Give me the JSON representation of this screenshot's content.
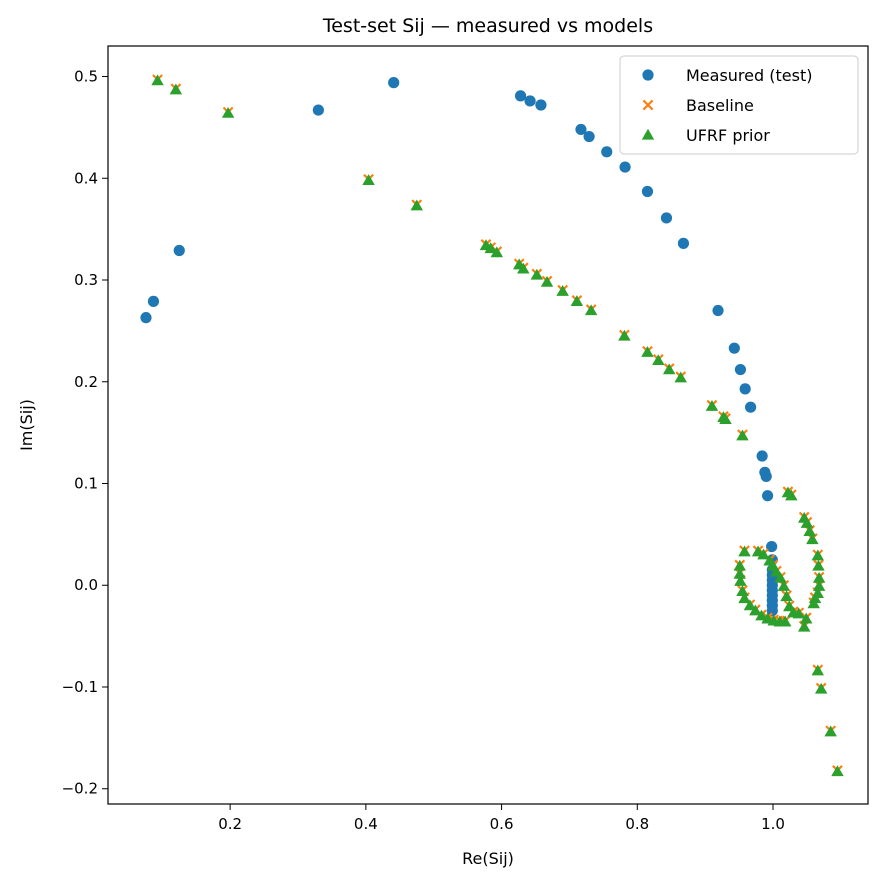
{
  "chart_data": {
    "type": "scatter",
    "title": "Test-set Sij — measured vs models",
    "xlabel": "Re(Sij)",
    "ylabel": "Im(Sij)",
    "xlim": [
      0.02,
      1.14
    ],
    "ylim": [
      -0.215,
      0.53
    ],
    "xticks": [
      0.2,
      0.4,
      0.6,
      0.8,
      1.0
    ],
    "xtick_labels": [
      "0.2",
      "0.4",
      "0.6",
      "0.8",
      "1.0"
    ],
    "yticks": [
      -0.2,
      -0.1,
      0.0,
      0.1,
      0.2,
      0.3,
      0.4,
      0.5
    ],
    "ytick_labels": [
      "−0.2",
      "−0.1",
      "0.0",
      "0.1",
      "0.2",
      "0.3",
      "0.4",
      "0.5"
    ],
    "grid": false,
    "legend_position": "top-right",
    "series": [
      {
        "name": "Measured (test)",
        "marker": "circle",
        "color": "#1f77b4",
        "points": [
          [
            0.076,
            0.263
          ],
          [
            0.087,
            0.279
          ],
          [
            0.125,
            0.329
          ],
          [
            0.33,
            0.467
          ],
          [
            0.441,
            0.494
          ],
          [
            0.628,
            0.481
          ],
          [
            0.642,
            0.476
          ],
          [
            0.658,
            0.472
          ],
          [
            0.717,
            0.448
          ],
          [
            0.729,
            0.441
          ],
          [
            0.755,
            0.426
          ],
          [
            0.782,
            0.411
          ],
          [
            0.815,
            0.387
          ],
          [
            0.843,
            0.361
          ],
          [
            0.868,
            0.336
          ],
          [
            0.919,
            0.27
          ],
          [
            0.943,
            0.233
          ],
          [
            0.952,
            0.212
          ],
          [
            0.959,
            0.193
          ],
          [
            0.967,
            0.175
          ],
          [
            0.984,
            0.127
          ],
          [
            0.988,
            0.111
          ],
          [
            0.99,
            0.107
          ],
          [
            0.992,
            0.088
          ],
          [
            0.998,
            0.038
          ],
          [
            0.999,
            0.025
          ],
          [
            0.999,
            0.015
          ],
          [
            0.999,
            0.01
          ],
          [
            0.999,
            0.005
          ],
          [
            0.999,
            0.0
          ],
          [
            0.999,
            -0.005
          ],
          [
            0.999,
            -0.01
          ],
          [
            0.999,
            -0.015
          ],
          [
            0.999,
            -0.02
          ],
          [
            0.999,
            -0.025
          ]
        ]
      },
      {
        "name": "Baseline",
        "marker": "x",
        "color": "#ff7f0e",
        "points": [
          [
            0.093,
            0.497
          ],
          [
            0.12,
            0.488
          ],
          [
            0.197,
            0.465
          ],
          [
            0.404,
            0.399
          ],
          [
            0.475,
            0.374
          ],
          [
            0.577,
            0.335
          ],
          [
            0.584,
            0.332
          ],
          [
            0.593,
            0.328
          ],
          [
            0.626,
            0.316
          ],
          [
            0.632,
            0.312
          ],
          [
            0.652,
            0.306
          ],
          [
            0.667,
            0.299
          ],
          [
            0.69,
            0.29
          ],
          [
            0.711,
            0.28
          ],
          [
            0.732,
            0.271
          ],
          [
            0.781,
            0.246
          ],
          [
            0.815,
            0.23
          ],
          [
            0.831,
            0.222
          ],
          [
            0.847,
            0.213
          ],
          [
            0.864,
            0.205
          ],
          [
            0.91,
            0.177
          ],
          [
            0.927,
            0.166
          ],
          [
            0.93,
            0.164
          ],
          [
            0.955,
            0.148
          ],
          [
            1.022,
            0.092
          ],
          [
            1.027,
            0.089
          ],
          [
            1.046,
            0.067
          ],
          [
            1.05,
            0.062
          ],
          [
            1.054,
            0.054
          ],
          [
            1.058,
            0.046
          ],
          [
            1.066,
            0.03
          ],
          [
            1.067,
            0.02
          ],
          [
            1.068,
            0.008
          ],
          [
            1.068,
            0.0
          ],
          [
            1.066,
            -0.007
          ],
          [
            1.062,
            -0.012
          ],
          [
            1.06,
            -0.017
          ],
          [
            1.049,
            -0.032
          ],
          [
            1.038,
            -0.027
          ],
          [
            1.03,
            -0.026
          ],
          [
            1.046,
            -0.04
          ],
          [
            1.018,
            -0.035
          ],
          [
            1.01,
            -0.035
          ],
          [
            1.001,
            -0.034
          ],
          [
            0.992,
            -0.032
          ],
          [
            0.983,
            -0.029
          ],
          [
            0.974,
            -0.024
          ],
          [
            0.966,
            -0.019
          ],
          [
            0.958,
            -0.012
          ],
          [
            0.955,
            -0.005
          ],
          [
            0.952,
            0.005
          ],
          [
            0.951,
            0.012
          ],
          [
            0.951,
            0.02
          ],
          [
            0.958,
            0.034
          ],
          [
            0.978,
            0.034
          ],
          [
            0.986,
            0.031
          ],
          [
            0.995,
            0.025
          ],
          [
            1.0,
            0.02
          ],
          [
            1.005,
            0.014
          ],
          [
            1.011,
            0.008
          ],
          [
            1.016,
            0.0
          ],
          [
            1.02,
            -0.01
          ],
          [
            1.024,
            -0.02
          ],
          [
            1.066,
            -0.083
          ],
          [
            1.071,
            -0.101
          ],
          [
            1.085,
            -0.143
          ],
          [
            1.095,
            -0.182
          ]
        ]
      },
      {
        "name": "UFRF prior",
        "marker": "triangle",
        "color": "#2ca02c",
        "points": [
          [
            0.093,
            0.496
          ],
          [
            0.12,
            0.487
          ],
          [
            0.197,
            0.464
          ],
          [
            0.404,
            0.398
          ],
          [
            0.475,
            0.373
          ],
          [
            0.577,
            0.334
          ],
          [
            0.584,
            0.331
          ],
          [
            0.593,
            0.327
          ],
          [
            0.626,
            0.315
          ],
          [
            0.632,
            0.311
          ],
          [
            0.652,
            0.305
          ],
          [
            0.667,
            0.298
          ],
          [
            0.69,
            0.289
          ],
          [
            0.711,
            0.279
          ],
          [
            0.732,
            0.27
          ],
          [
            0.781,
            0.245
          ],
          [
            0.815,
            0.229
          ],
          [
            0.831,
            0.221
          ],
          [
            0.847,
            0.212
          ],
          [
            0.864,
            0.204
          ],
          [
            0.91,
            0.176
          ],
          [
            0.927,
            0.165
          ],
          [
            0.93,
            0.163
          ],
          [
            0.955,
            0.147
          ],
          [
            1.022,
            0.091
          ],
          [
            1.027,
            0.088
          ],
          [
            1.046,
            0.066
          ],
          [
            1.05,
            0.061
          ],
          [
            1.054,
            0.053
          ],
          [
            1.058,
            0.045
          ],
          [
            1.066,
            0.029
          ],
          [
            1.067,
            0.019
          ],
          [
            1.068,
            0.007
          ],
          [
            1.068,
            -0.001
          ],
          [
            1.066,
            -0.008
          ],
          [
            1.062,
            -0.013
          ],
          [
            1.06,
            -0.018
          ],
          [
            1.049,
            -0.033
          ],
          [
            1.038,
            -0.028
          ],
          [
            1.03,
            -0.027
          ],
          [
            1.046,
            -0.041
          ],
          [
            1.018,
            -0.036
          ],
          [
            1.01,
            -0.036
          ],
          [
            1.001,
            -0.035
          ],
          [
            0.992,
            -0.033
          ],
          [
            0.983,
            -0.03
          ],
          [
            0.974,
            -0.025
          ],
          [
            0.966,
            -0.02
          ],
          [
            0.958,
            -0.013
          ],
          [
            0.955,
            -0.006
          ],
          [
            0.952,
            0.004
          ],
          [
            0.951,
            0.011
          ],
          [
            0.951,
            0.019
          ],
          [
            0.958,
            0.033
          ],
          [
            0.978,
            0.033
          ],
          [
            0.986,
            0.03
          ],
          [
            0.995,
            0.024
          ],
          [
            1.0,
            0.019
          ],
          [
            1.005,
            0.013
          ],
          [
            1.011,
            0.007
          ],
          [
            1.016,
            -0.001
          ],
          [
            1.02,
            -0.011
          ],
          [
            1.024,
            -0.021
          ],
          [
            1.066,
            -0.084
          ],
          [
            1.071,
            -0.102
          ],
          [
            1.085,
            -0.144
          ],
          [
            1.095,
            -0.183
          ]
        ]
      }
    ]
  }
}
